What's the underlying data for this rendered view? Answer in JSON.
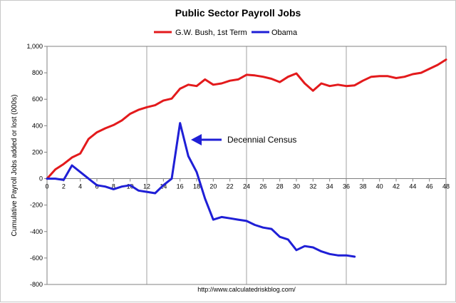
{
  "chart_data": {
    "type": "line",
    "title": "Public Sector Payroll Jobs",
    "xlabel": "",
    "ylabel": "Cumulative Payroll Jobs added or lost (000s)",
    "xlim": [
      0,
      48
    ],
    "ylim": [
      -800,
      1000
    ],
    "x_ticks": [
      "0",
      "2",
      "4",
      "6",
      "8",
      "10",
      "12",
      "14",
      "16",
      "18",
      "20",
      "22",
      "24",
      "26",
      "28",
      "30",
      "32",
      "34",
      "36",
      "38",
      "40",
      "42",
      "44",
      "46",
      "48"
    ],
    "y_ticks": [
      "1,000",
      "800",
      "600",
      "400",
      "200",
      "0",
      "-200",
      "-400",
      "-600",
      "-800"
    ],
    "grid": "vertical every 12 months",
    "legend_position": "top",
    "annotation": "Decennial Census",
    "source": "http://www.calculatedriskblog.com/",
    "series": [
      {
        "name": "G.W. Bush, 1st Term",
        "color": "#e31a1c",
        "x": [
          0,
          1,
          2,
          3,
          4,
          5,
          6,
          7,
          8,
          9,
          10,
          11,
          12,
          13,
          14,
          15,
          16,
          17,
          18,
          19,
          20,
          21,
          22,
          23,
          24,
          25,
          26,
          27,
          28,
          29,
          30,
          31,
          32,
          33,
          34,
          35,
          36,
          37,
          38,
          39,
          40,
          41,
          42,
          43,
          44,
          45,
          46,
          47,
          48
        ],
        "values": [
          0,
          70,
          110,
          160,
          190,
          300,
          350,
          380,
          405,
          440,
          490,
          520,
          540,
          555,
          590,
          605,
          680,
          710,
          700,
          750,
          710,
          720,
          740,
          750,
          785,
          780,
          770,
          755,
          730,
          770,
          795,
          720,
          665,
          720,
          700,
          710,
          700,
          705,
          740,
          770,
          775,
          775,
          760,
          770,
          790,
          800,
          830,
          860,
          900
        ]
      },
      {
        "name": "Obama",
        "color": "#1f1fd6",
        "x": [
          0,
          1,
          2,
          3,
          4,
          5,
          6,
          7,
          8,
          9,
          10,
          11,
          12,
          13,
          14,
          15,
          16,
          17,
          18,
          19,
          20,
          21,
          22,
          23,
          24,
          25,
          26,
          27,
          28,
          29,
          30,
          31,
          32,
          33,
          34,
          35,
          36,
          37
        ],
        "values": [
          0,
          0,
          -10,
          100,
          50,
          0,
          -50,
          -60,
          -80,
          -60,
          -50,
          -90,
          -100,
          -110,
          -50,
          0,
          420,
          170,
          50,
          -150,
          -310,
          -290,
          -300,
          -310,
          -320,
          -350,
          -370,
          -380,
          -440,
          -460,
          -540,
          -510,
          -520,
          -550,
          -570,
          -580,
          -580,
          -590
        ]
      }
    ]
  }
}
